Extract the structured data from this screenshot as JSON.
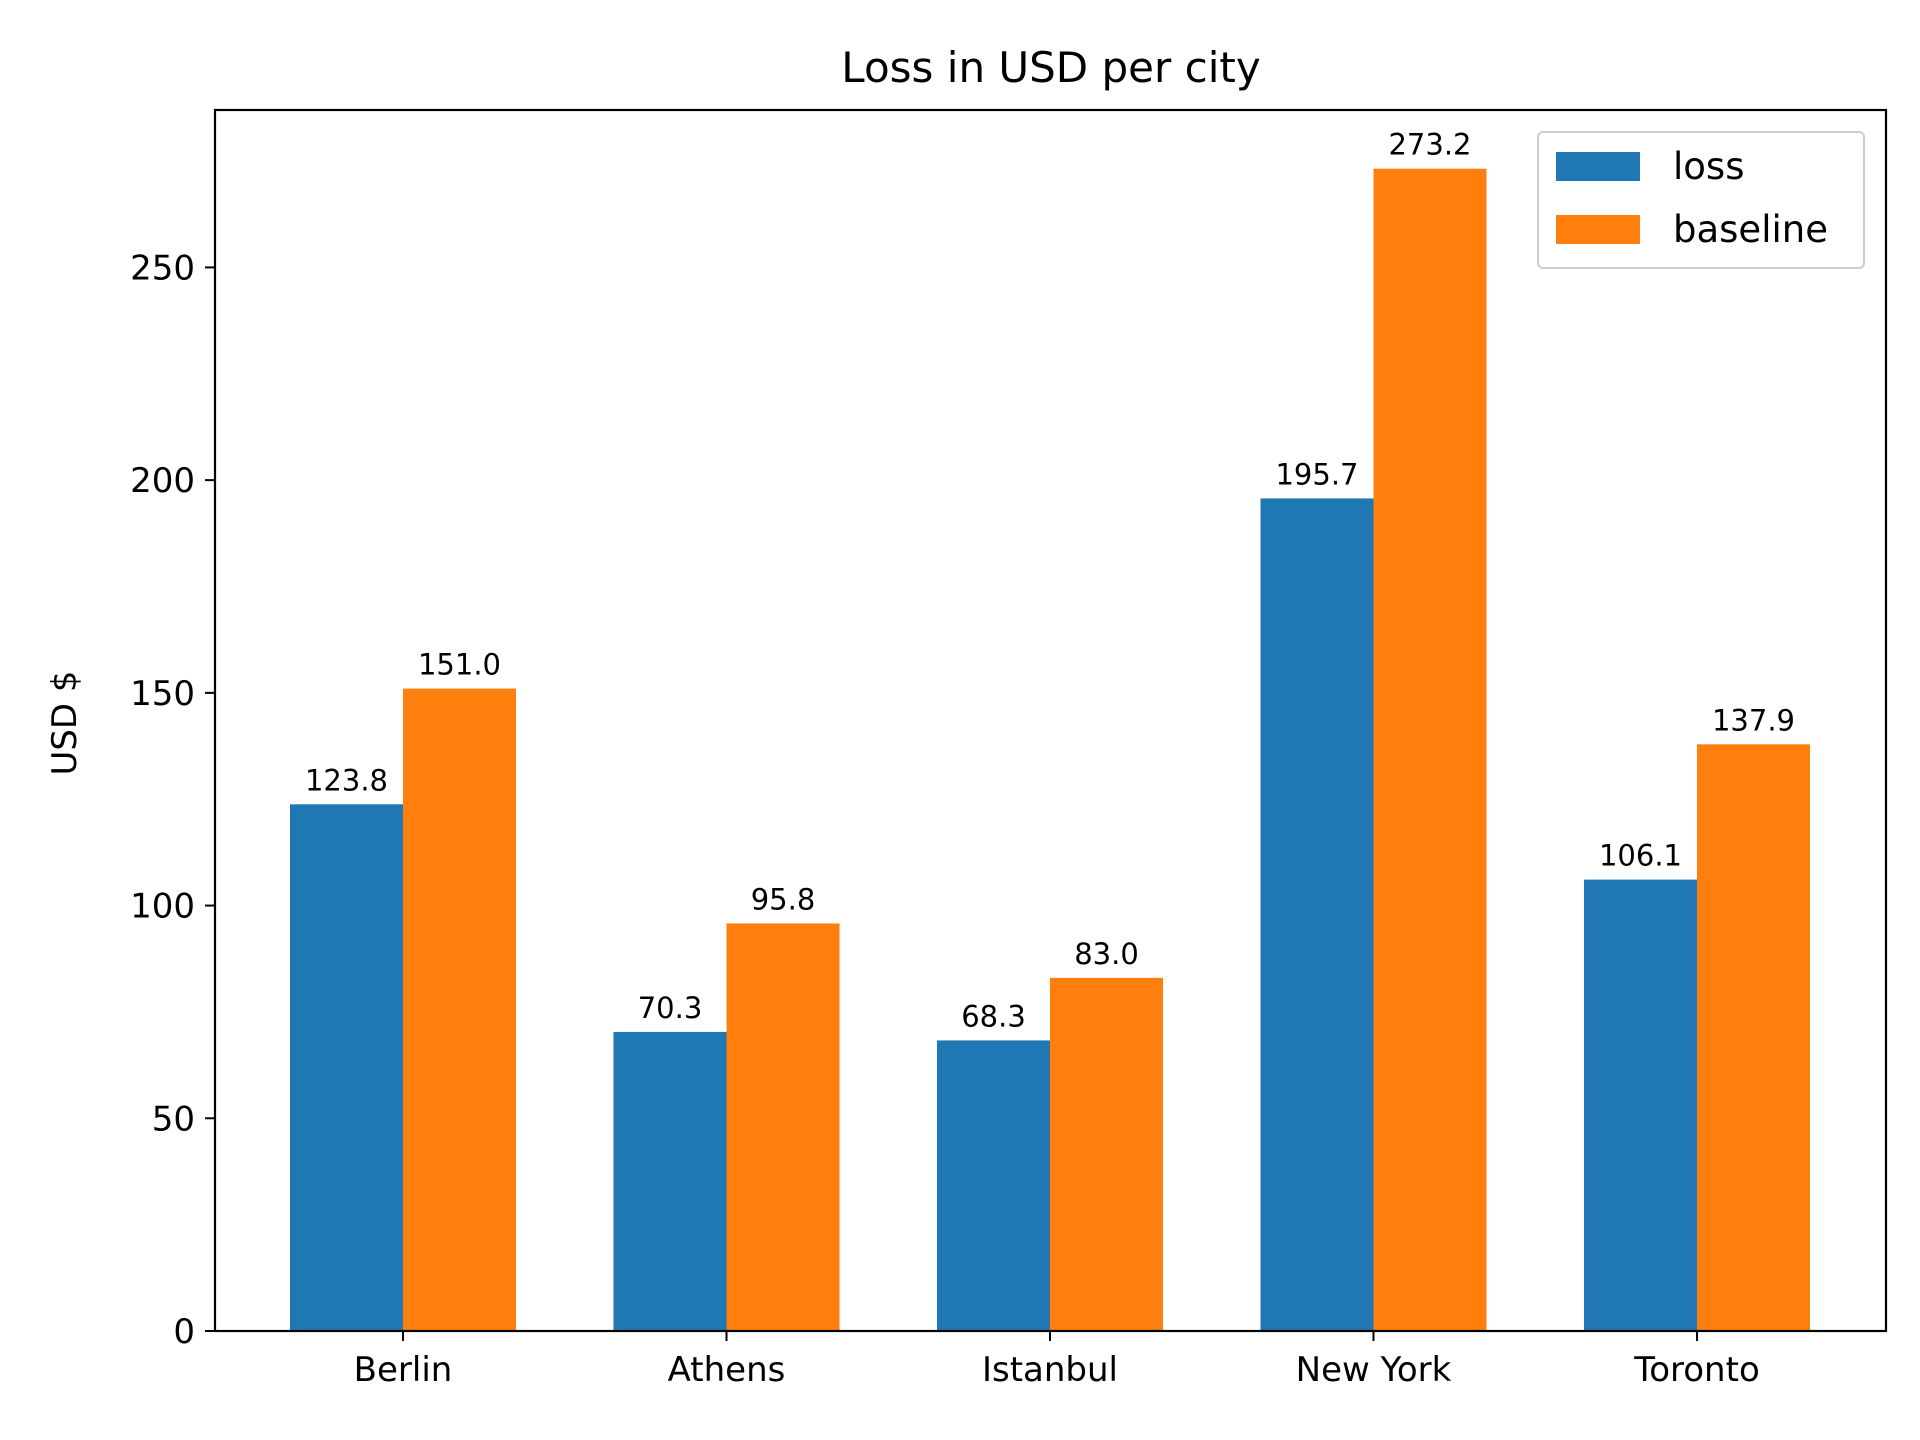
{
  "chart_data": {
    "type": "bar",
    "title": "Loss in USD per city",
    "xlabel": "",
    "ylabel": "USD $",
    "categories": [
      "Berlin",
      "Athens",
      "Istanbul",
      "New York",
      "Toronto"
    ],
    "series": [
      {
        "name": "loss",
        "color": "#1f77b4",
        "values": [
          123.8,
          70.3,
          68.3,
          195.7,
          106.1
        ],
        "labels": [
          "123.8",
          "70.3",
          "68.3",
          "195.7",
          "106.1"
        ]
      },
      {
        "name": "baseline",
        "color": "#ff7f0e",
        "values": [
          151.0,
          95.8,
          83.0,
          273.2,
          137.9
        ],
        "labels": [
          "151.0",
          "95.8",
          "83.0",
          "273.2",
          "137.9"
        ]
      }
    ],
    "ylim": [
      0,
      287
    ],
    "yticks": [
      0,
      50,
      100,
      150,
      200,
      250
    ],
    "ytick_labels": [
      "0",
      "50",
      "100",
      "150",
      "200",
      "250"
    ],
    "legend_position": "top-right",
    "grid": false
  }
}
